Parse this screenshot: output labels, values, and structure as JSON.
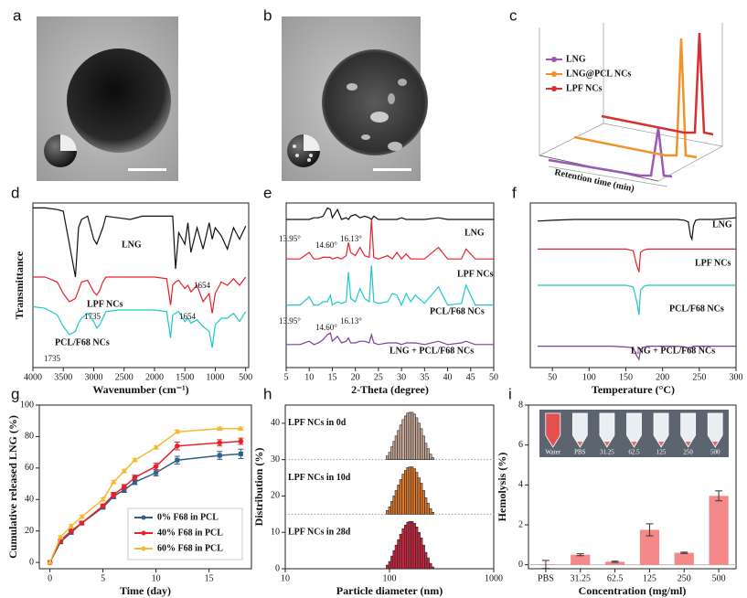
{
  "panel_labels": [
    "a",
    "b",
    "c",
    "d",
    "e",
    "f",
    "g",
    "h",
    "i"
  ],
  "panel_c": {
    "xlabel": "Retention time (min)",
    "legend": [
      {
        "name": "LNG",
        "color": "#9b59b6"
      },
      {
        "name": "LNG@PCL NCs",
        "color": "#f0932b"
      },
      {
        "name": "LPF NCs",
        "color": "#d63031"
      }
    ]
  },
  "chart_data": [
    {
      "type": "line",
      "xlabel": "Wavenumber (cm⁻¹)",
      "ylabel": "Transmittance",
      "xlim": [
        4000,
        450
      ],
      "xticks": [
        4000,
        3500,
        3000,
        2500,
        2000,
        1500,
        1000,
        500
      ],
      "ylim": [
        0,
        100
      ],
      "x": [
        4000,
        3800,
        3600,
        3500,
        3400,
        3300,
        3250,
        3200,
        3100,
        3000,
        2950,
        2900,
        2850,
        2800,
        2600,
        2400,
        2200,
        2000,
        1800,
        1735,
        1700,
        1654,
        1600,
        1500,
        1450,
        1400,
        1300,
        1200,
        1100,
        1050,
        1000,
        900,
        800,
        700,
        600,
        500
      ],
      "series": [
        {
          "name": "LNG",
          "color": "#111111",
          "values": [
            97,
            97,
            96,
            95,
            75,
            55,
            85,
            90,
            92,
            78,
            75,
            80,
            85,
            92,
            91,
            90,
            92,
            92,
            92,
            92,
            92,
            60,
            82,
            75,
            88,
            70,
            85,
            72,
            88,
            78,
            85,
            80,
            72,
            85,
            78,
            86
          ]
        },
        {
          "name": "LPF NCs",
          "color": "#e8202a",
          "values": [
            55,
            55,
            52,
            45,
            40,
            42,
            47,
            52,
            53,
            46,
            44,
            47,
            52,
            55,
            55,
            55,
            55,
            55,
            54,
            38,
            50,
            52,
            53,
            48,
            50,
            46,
            50,
            40,
            45,
            33,
            45,
            52,
            50,
            54,
            50,
            55
          ]
        },
        {
          "name": "PCL/F68 NCs",
          "color": "#1ec8c8",
          "values": [
            37,
            36,
            32,
            25,
            20,
            22,
            27,
            30,
            33,
            28,
            24,
            26,
            30,
            34,
            35,
            35,
            35,
            35,
            34,
            18,
            32,
            33,
            34,
            28,
            30,
            27,
            29,
            25,
            22,
            12,
            26,
            30,
            30,
            33,
            28,
            34
          ]
        }
      ],
      "annotations": [
        "1654",
        "1735",
        "1654",
        "1735"
      ]
    },
    {
      "type": "line",
      "xlabel": "2-Theta (degree)",
      "xlim": [
        5,
        50
      ],
      "xticks": [
        5,
        10,
        15,
        20,
        25,
        30,
        35,
        40,
        45,
        50
      ],
      "ylim": [
        0,
        100
      ],
      "x": [
        5,
        8,
        10,
        11,
        12,
        13,
        13.95,
        14.6,
        15,
        16.13,
        17,
        18,
        18.5,
        19,
        20,
        21,
        22,
        23,
        23.5,
        24,
        25,
        27,
        28,
        29,
        30,
        31,
        32,
        33,
        35,
        38,
        40,
        43,
        44,
        46,
        48,
        50
      ],
      "series": [
        {
          "name": "LNG",
          "color": "#111111",
          "values": [
            90,
            90,
            90,
            91,
            91,
            92,
            97,
            96,
            91,
            96,
            90,
            91,
            90,
            92,
            93,
            91,
            92,
            91,
            90,
            92,
            90,
            90,
            90,
            90,
            91,
            90,
            90,
            90,
            90,
            91,
            90,
            90,
            90,
            90,
            90,
            90
          ]
        },
        {
          "name": "LPF NCs",
          "color": "#e8202a",
          "values": [
            66,
            66,
            70,
            66,
            66,
            67,
            67,
            67,
            66,
            67,
            66,
            68,
            76,
            70,
            68,
            73,
            68,
            67,
            90,
            67,
            66,
            68,
            66,
            70,
            66,
            69,
            66,
            66,
            66,
            73,
            66,
            66,
            72,
            66,
            66,
            66
          ]
        },
        {
          "name": "PCL/F68 NCs",
          "color": "#1ec8c8",
          "values": [
            38,
            38,
            43,
            38,
            38,
            40,
            40,
            44,
            38,
            40,
            39,
            40,
            58,
            42,
            40,
            48,
            42,
            40,
            62,
            40,
            39,
            40,
            45,
            44,
            38,
            45,
            40,
            44,
            39,
            49,
            38,
            39,
            50,
            38,
            38,
            38
          ]
        },
        {
          "name": "LNG + PCL/F68 NCs",
          "color": "#7b3fa0",
          "values": [
            14,
            14,
            16,
            14,
            15,
            17,
            20,
            21,
            16,
            19,
            15,
            16,
            18,
            15,
            15,
            16,
            16,
            15,
            20,
            15,
            14,
            15,
            15,
            15,
            14,
            15,
            15,
            15,
            14,
            16,
            14,
            15,
            16,
            14,
            14,
            14
          ]
        }
      ],
      "annotations": [
        "13.95°",
        "14.60°",
        "16.13°",
        "13.95°",
        "14.60°",
        "16.13°"
      ]
    },
    {
      "type": "line",
      "xlabel": "Temperature (°C)",
      "xlim": [
        20,
        300
      ],
      "xticks": [
        50,
        100,
        150,
        200,
        250,
        300
      ],
      "ylim": [
        0,
        100
      ],
      "x": [
        30,
        50,
        80,
        100,
        130,
        150,
        160,
        165,
        168,
        170,
        175,
        180,
        200,
        220,
        230,
        235,
        238,
        240,
        242,
        245,
        250,
        270,
        300
      ],
      "series": [
        {
          "name": "LNG",
          "color": "#111111",
          "values": [
            89,
            89.5,
            90,
            90,
            90,
            90,
            90,
            90,
            90,
            90,
            90,
            90,
            90,
            90,
            89.5,
            88.5,
            80,
            78,
            86,
            89.5,
            90,
            90,
            91
          ]
        },
        {
          "name": "LPF NCs",
          "color": "#e8202a",
          "values": [
            72,
            72,
            72,
            72,
            72,
            72,
            71,
            62,
            58,
            70,
            71.5,
            72,
            72,
            72,
            72,
            72,
            72,
            72,
            72,
            72,
            72,
            72,
            72
          ]
        },
        {
          "name": "PCL/F68 NCs",
          "color": "#1ec8c8",
          "values": [
            50,
            50,
            50,
            50,
            50,
            50,
            49,
            40,
            32,
            47,
            49.5,
            50,
            50,
            50,
            50,
            50,
            50,
            50,
            50,
            50,
            50,
            50,
            50
          ]
        },
        {
          "name": "LNG + PCL/F68 NCs",
          "color": "#7b3fa0",
          "values": [
            13,
            13,
            13,
            13,
            13,
            12.5,
            12,
            7,
            5,
            11,
            12.5,
            13,
            13,
            13,
            12.5,
            12,
            11.5,
            12.5,
            13,
            13,
            13,
            13,
            13
          ]
        }
      ]
    },
    {
      "type": "line",
      "xlabel": "Time (day)",
      "ylabel": "Cumulative released LNG (%)",
      "xlim": [
        -1,
        19
      ],
      "xticks": [
        0,
        5,
        10,
        15
      ],
      "ylim": [
        -4,
        100
      ],
      "yticks": [
        0,
        20,
        40,
        60,
        80,
        100
      ],
      "x": [
        0,
        1,
        2,
        3,
        5,
        6,
        7,
        8,
        10,
        12,
        16,
        18
      ],
      "series": [
        {
          "name": "0%  F68 in PCL",
          "color": "#2f5f8a",
          "marker": "square",
          "values": [
            0,
            13,
            19,
            25,
            35,
            42,
            46,
            51,
            57,
            65,
            68,
            69
          ],
          "errors": [
            0,
            1,
            1,
            1,
            1,
            1.5,
            1.5,
            1.5,
            2,
            2.5,
            2.5,
            3
          ]
        },
        {
          "name": "40% F68 in PCL",
          "color": "#e8202a",
          "marker": "circle",
          "values": [
            0,
            14,
            20,
            25,
            36,
            43,
            48,
            54,
            61,
            74,
            76,
            77
          ],
          "errors": [
            0,
            1,
            1,
            1,
            1,
            1.5,
            1.5,
            1.5,
            2,
            2.5,
            2,
            2
          ]
        },
        {
          "name": "60% F68 in PCL",
          "color": "#f5b82e",
          "marker": "triangle",
          "values": [
            0,
            16,
            23,
            29,
            40,
            51,
            58,
            65,
            73,
            83,
            85,
            85
          ],
          "errors": [
            0,
            1,
            1,
            1,
            1,
            1,
            1,
            1,
            1,
            1,
            1,
            1
          ]
        }
      ]
    },
    {
      "type": "histogram",
      "xlabel": "Particle diameter (nm)",
      "ylabel": "Distribution (%)",
      "xlog": true,
      "xlim": [
        10,
        1000
      ],
      "xticks": [
        10,
        100,
        1000
      ],
      "ylim": [
        0,
        45
      ],
      "yticks": [
        0,
        10,
        20,
        30,
        40
      ],
      "bins": [
        93,
        98,
        103,
        108,
        113,
        119,
        125,
        132,
        139,
        146,
        153,
        161,
        169,
        178,
        187,
        197,
        207,
        218,
        229,
        241,
        254,
        267
      ],
      "series": [
        {
          "name": "LPF NCs in 0d",
          "color": "#c9a99a",
          "base": 30,
          "values": [
            1,
            2,
            3.5,
            5,
            6.5,
            8,
            9.5,
            11,
            12,
            12.8,
            13,
            13,
            12.5,
            11.5,
            10,
            8.5,
            6.5,
            4.5,
            3,
            1.5,
            0.5
          ]
        },
        {
          "name": "LPF NCs in 10d",
          "color": "#e07b2a",
          "base": 15,
          "values": [
            1,
            2,
            3.5,
            5,
            6.5,
            8,
            9.5,
            11,
            12,
            12.8,
            13,
            13,
            12.5,
            11.5,
            10,
            8.5,
            6.5,
            4.5,
            3,
            1.5,
            0.5
          ]
        },
        {
          "name": "LPF NCs in 28d",
          "color": "#c8283f",
          "base": 0,
          "values": [
            1,
            2,
            3.5,
            5,
            6.5,
            8,
            9.5,
            11,
            12,
            12.8,
            13,
            13,
            12.5,
            11.5,
            10,
            8.5,
            6.5,
            4.5,
            3,
            1.5,
            0.5
          ]
        }
      ]
    },
    {
      "type": "bar",
      "xlabel": "Concentration (mg/ml)",
      "ylabel": "Hemolysis (%)",
      "ylim": [
        -0.2,
        8
      ],
      "yticks": [
        0,
        2,
        4,
        6,
        8
      ],
      "color": "#f37373",
      "categories": [
        "PBS",
        "31.25",
        "62.5",
        "125",
        "250",
        "500"
      ],
      "values": [
        0.02,
        0.5,
        0.15,
        1.75,
        0.6,
        3.45
      ],
      "errors": [
        0.2,
        0.05,
        0.03,
        0.3,
        0.03,
        0.25
      ],
      "inset_labels": [
        "Water",
        "PBS",
        "31.25",
        "62.5",
        "125",
        "250",
        "500"
      ]
    }
  ]
}
